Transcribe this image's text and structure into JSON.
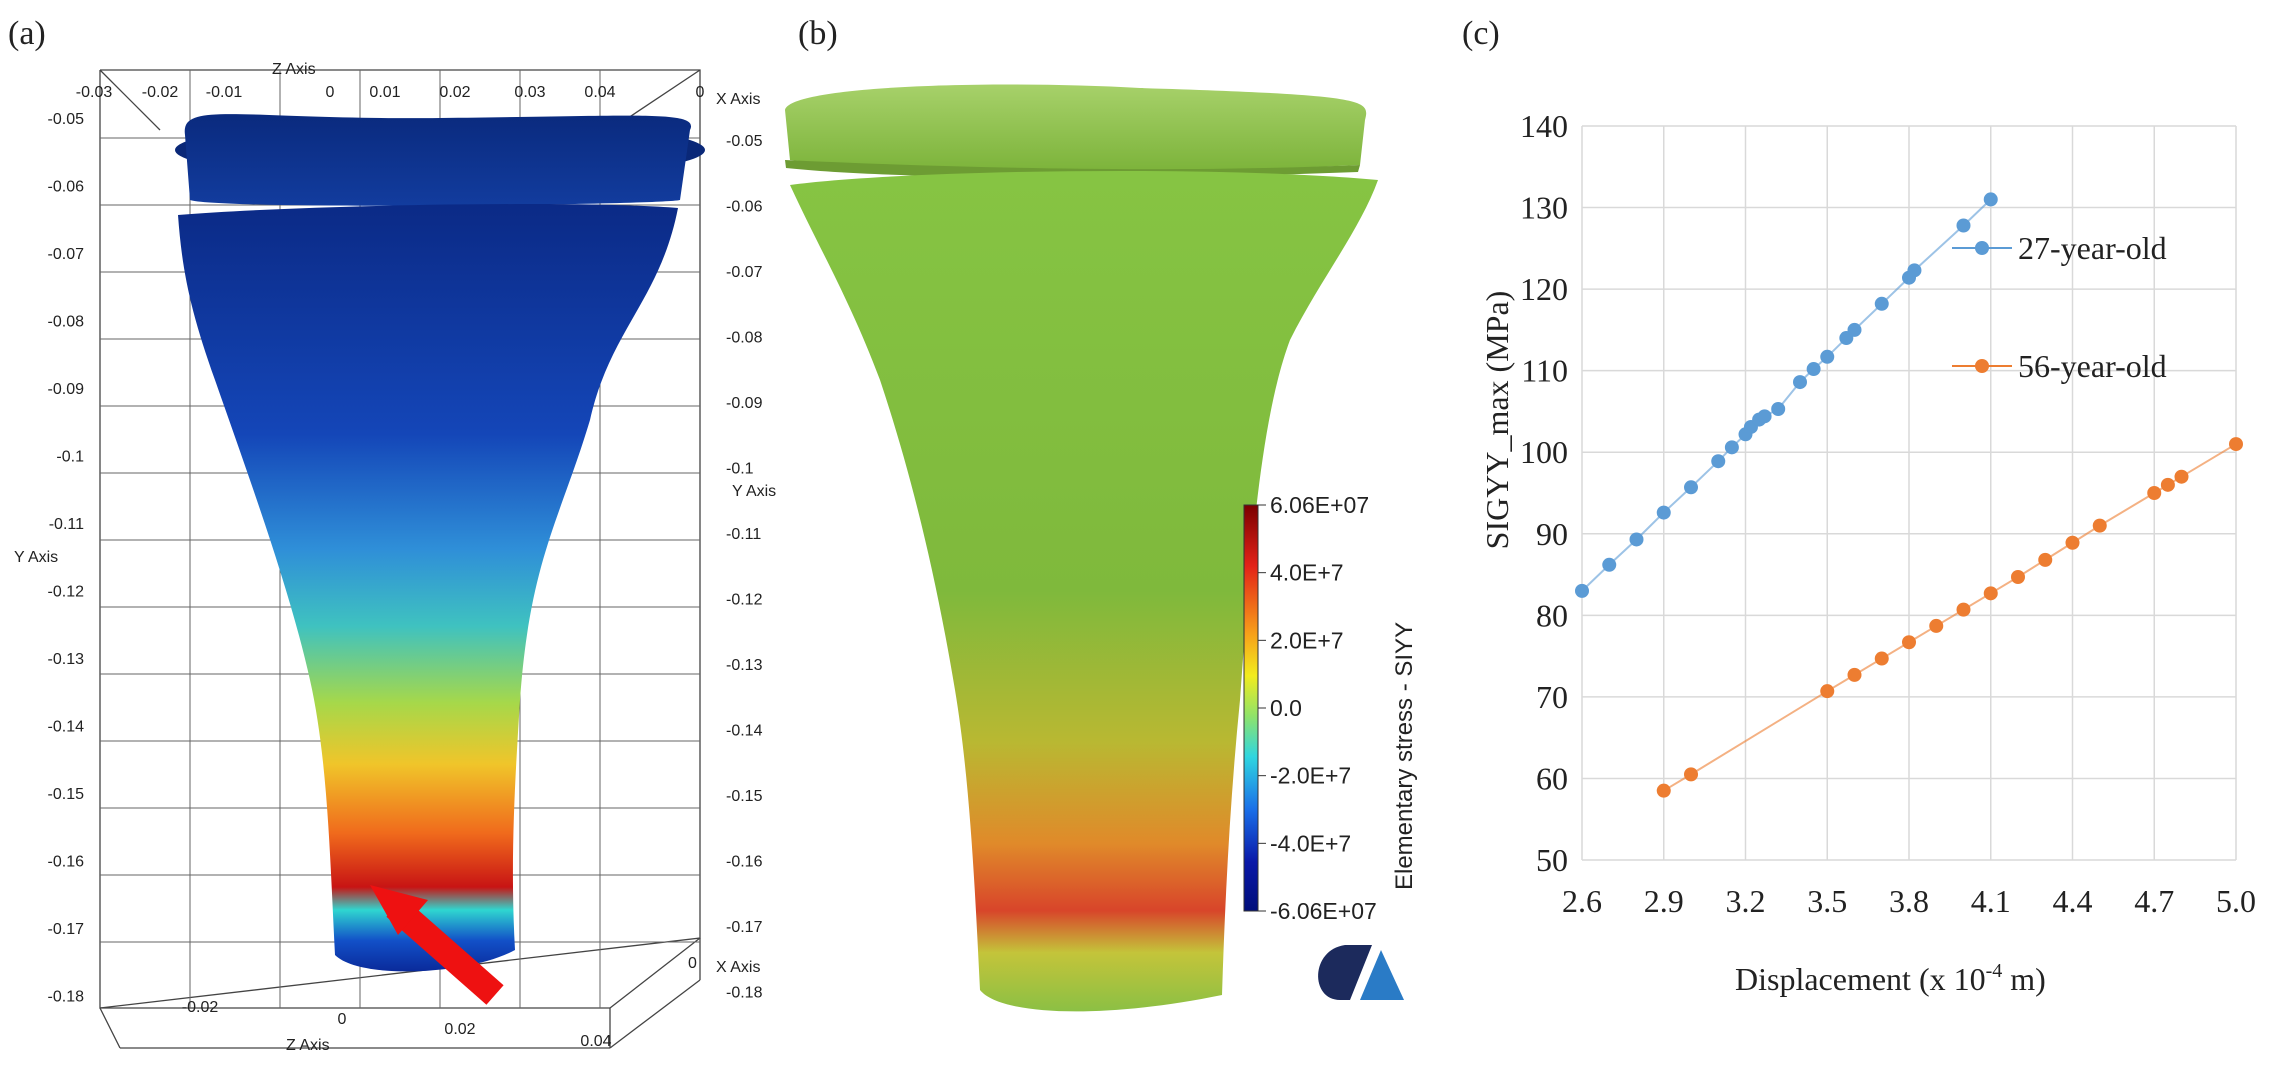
{
  "panels": {
    "a": {
      "label": "(a)",
      "axes": {
        "z_axis_title": "Z Axis",
        "x_axis_title": "X Axis",
        "y_axis_title": "Y Axis",
        "top_ticks": [
          "-0.03",
          "-0.02",
          "-0.01",
          "0",
          "0.01",
          "0.02",
          "0.03",
          "0.04",
          "0"
        ],
        "left_y_ticks": [
          "-0.05",
          "-0.06",
          "-0.07",
          "-0.08",
          "-0.09",
          "-0.1",
          "-0.11",
          "-0.12",
          "-0.13",
          "-0.14",
          "-0.15",
          "-0.16",
          "-0.17",
          "-0.18"
        ],
        "right_y_ticks": [
          "-0.05",
          "-0.06",
          "-0.07",
          "-0.08",
          "-0.09",
          "-0.1",
          "-0.11",
          "-0.12",
          "-0.13",
          "-0.14",
          "-0.15",
          "-0.16",
          "-0.17",
          "-0.18"
        ],
        "bottom_z_ticks": [
          "-0.02",
          "0",
          "0.02",
          "0.04"
        ],
        "bottom_right_tick": "0"
      }
    },
    "b": {
      "label": "(b)",
      "colorbar": {
        "title": "Elementary stress - SIYY",
        "ticks": [
          "6.06E+07",
          "4.0E+7",
          "2.0E+7",
          "0.0",
          "-2.0E+7",
          "-4.0E+7",
          "-6.06E+07"
        ],
        "colors": [
          "#7a0000",
          "#e32218",
          "#f7a21a",
          "#f2ec1e",
          "#8fe36a",
          "#2fd6e0",
          "#1a6fe8",
          "#0a18a8",
          "#000e7a"
        ]
      },
      "logo": {
        "colors": [
          "#1c2a5c",
          "#2a7bc6"
        ]
      }
    },
    "c": {
      "label": "(c)"
    }
  },
  "chart_data": {
    "type": "line",
    "xlabel": "Displacement  (x 10",
    "xlabel_sup": "-4",
    "xlabel_tail": " m)",
    "ylabel": "SIGYY_max (MPa)",
    "xlim": [
      2.6,
      5.0
    ],
    "ylim": [
      50,
      140
    ],
    "xticks": [
      "2.6",
      "2.9",
      "3.2",
      "3.5",
      "3.8",
      "4.1",
      "4.4",
      "4.7",
      "5.0"
    ],
    "yticks": [
      "50",
      "60",
      "70",
      "80",
      "90",
      "100",
      "110",
      "120",
      "130",
      "140"
    ],
    "grid": true,
    "legend_placement": "right",
    "series": [
      {
        "name": "27-year-old",
        "color": "#5b9bd5",
        "x": [
          2.6,
          2.7,
          2.8,
          2.9,
          3.0,
          3.1,
          3.15,
          3.2,
          3.22,
          3.25,
          3.27,
          3.32,
          3.4,
          3.45,
          3.5,
          3.57,
          3.6,
          3.7,
          3.8,
          3.82,
          4.0,
          4.1
        ],
        "y": [
          83,
          86.2,
          89.3,
          92.6,
          95.7,
          98.9,
          100.6,
          102.2,
          103.1,
          104.0,
          104.4,
          105.3,
          108.6,
          110.2,
          111.7,
          114.0,
          115.0,
          118.2,
          121.4,
          122.3,
          127.8,
          131
        ]
      },
      {
        "name": "56-year-old",
        "color": "#ed7d31",
        "x": [
          2.9,
          3.0,
          3.5,
          3.6,
          3.7,
          3.8,
          3.9,
          4.0,
          4.1,
          4.2,
          4.3,
          4.4,
          4.5,
          4.7,
          4.75,
          4.8,
          5.0
        ],
        "y": [
          58.5,
          60.5,
          70.7,
          72.7,
          74.7,
          76.7,
          78.7,
          80.7,
          82.7,
          84.7,
          86.8,
          88.9,
          91.0,
          95.0,
          96.0,
          97.0,
          101.0
        ]
      }
    ]
  }
}
